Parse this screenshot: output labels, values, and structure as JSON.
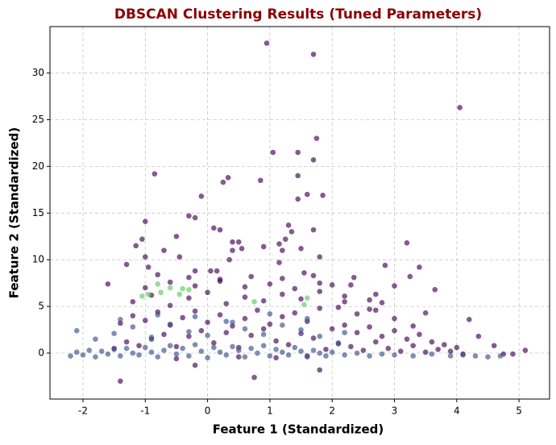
{
  "chart_data": {
    "type": "scatter",
    "title": "DBSCAN Clustering Results (Tuned Parameters)",
    "title_color": "#8b0000",
    "x_label": "Feature 1 (Standardized)",
    "y_label": "Feature 2 (Standardized)",
    "xlim": [
      -2.53,
      5.49
    ],
    "ylim": [
      -4.92,
      34.97
    ],
    "xticks": [
      -2,
      -1,
      0,
      1,
      2,
      3,
      4,
      5
    ],
    "yticks": [
      0,
      5,
      10,
      15,
      20,
      25,
      30
    ],
    "grid": true,
    "series": [
      {
        "color": "#440154",
        "x": [
          0.95,
          1.7,
          4.05,
          1.05,
          1.45,
          1.75,
          1.7,
          -0.85,
          0.25,
          0.33,
          0.85,
          1.45,
          -0.1,
          1.45,
          1.6,
          1.85,
          -1,
          -0.3,
          -0.2,
          0.1,
          0.2,
          1.3,
          1.35,
          1.7,
          -1.05,
          -0.5,
          0.4,
          0.5,
          1.15,
          1.25,
          -1.15,
          -0.7,
          0.4,
          0.55,
          0.9,
          1.2,
          1.5,
          1.8,
          3.2,
          -1,
          -0.45,
          0.35,
          -1.3,
          -0.95,
          1.15,
          2.85,
          3.4,
          -0.2,
          0.05,
          0.15,
          1.55,
          2.35,
          3.25,
          -1.6,
          2.0,
          2.3,
          2.7,
          3.0,
          3.65,
          2.6,
          2.8,
          3.5,
          4.2,
          4.35,
          4.6,
          5.1,
          4.9,
          4.75,
          -1.4,
          0.75,
          1.8,
          -0.2,
          -1.5,
          -1.3,
          -1.1,
          -0.9,
          -0.7,
          -0.5,
          -0.3,
          -0.1,
          0.1,
          0.3,
          0.5,
          0.7,
          0.9,
          1.1,
          1.3,
          1.5,
          1.7,
          1.9,
          2.1,
          2.3,
          2.5,
          2.7,
          2.9,
          3.1,
          3.3,
          3.5,
          3.7,
          3.9,
          4.1,
          -1.4,
          -1.2,
          -1.0,
          -0.8,
          -0.6,
          -0.4,
          -0.2,
          0.0,
          0.2,
          0.4,
          0.6,
          0.8,
          1.0,
          1.2,
          1.4,
          1.6,
          1.8,
          2.0,
          2.2,
          2.4,
          2.6,
          2.8,
          3.0,
          3.2,
          3.4,
          3.6,
          3.8,
          4.0,
          -1.2,
          -0.9,
          -0.6,
          -0.3,
          0.0,
          0.3,
          0.6,
          0.9,
          1.2,
          1.5,
          1.8,
          2.1,
          2.4,
          2.7,
          3.0,
          3.3,
          -1.0,
          -0.6,
          -0.2,
          0.2,
          0.6,
          1.0,
          1.4,
          1.8,
          2.2,
          2.6,
          -0.8,
          -0.3,
          0.2,
          0.7,
          1.2,
          1.7,
          2.2,
          -0.5,
          0.5,
          1.1,
          1.6
        ],
        "y": [
          33.2,
          32,
          26.3,
          21.5,
          21.5,
          23,
          20.7,
          19.2,
          18.3,
          18.8,
          18.5,
          19,
          16.8,
          16.5,
          17,
          16.9,
          14.1,
          14.7,
          14.5,
          13.4,
          13.2,
          13.7,
          13,
          13.2,
          12.2,
          12.5,
          11.9,
          11.9,
          11.7,
          12.2,
          11.5,
          11,
          11,
          11.2,
          11.4,
          11,
          11.2,
          10.3,
          11.8,
          10.3,
          10.3,
          10,
          9.5,
          9.2,
          9.7,
          9.4,
          9.2,
          8.8,
          8.8,
          8.8,
          8.6,
          8.1,
          8.2,
          7.4,
          7.3,
          7.3,
          6.3,
          7.2,
          6.8,
          5.7,
          5.4,
          4.3,
          3.6,
          1.8,
          0.8,
          0.3,
          -0.1,
          -0.1,
          -3,
          -2.6,
          -1.8,
          -1.3,
          0.5,
          1.2,
          0.8,
          1.5,
          2.0,
          0.7,
          1.8,
          2.4,
          1.1,
          2.2,
          0.6,
          1.9,
          2.6,
          1.3,
          0.9,
          2.1,
          1.6,
          0.4,
          1.0,
          0.7,
          0.3,
          1.2,
          0.5,
          0.2,
          0.8,
          0.1,
          0.4,
          0.2,
          -0.1,
          3.2,
          4.0,
          3.5,
          4.4,
          3.0,
          3.8,
          4.5,
          3.3,
          4.1,
          2.9,
          3.7,
          4.6,
          3.1,
          3.9,
          4.3,
          3.4,
          4.8,
          2.6,
          3.0,
          2.2,
          2.8,
          1.8,
          2.4,
          1.5,
          2.0,
          1.2,
          0.9,
          0.6,
          5.5,
          6.2,
          5.1,
          5.9,
          6.5,
          5.3,
          6.0,
          5.6,
          6.3,
          5.8,
          6.6,
          4.9,
          4.2,
          4.6,
          3.7,
          2.9,
          7.0,
          7.6,
          7.2,
          7.7,
          7.1,
          7.4,
          6.9,
          7.5,
          5.5,
          4.7,
          8.4,
          8.1,
          7.9,
          8.2,
          8.0,
          8.3,
          6.1,
          -0.6,
          -0.4,
          -0.5,
          -0.3
        ]
      },
      {
        "color": "#3b528b",
        "x": [
          -2.2,
          -2.1,
          -2.0,
          -1.9,
          -1.8,
          -1.7,
          -1.6,
          -1.5,
          -1.4,
          -1.3,
          -1.2,
          -1.1,
          -1.0,
          -0.9,
          -0.8,
          -0.7,
          -0.6,
          -0.5,
          -0.4,
          -0.3,
          -0.2,
          -0.1,
          0.0,
          0.1,
          0.2,
          0.3,
          0.4,
          0.5,
          0.6,
          0.7,
          0.8,
          0.9,
          1.0,
          1.1,
          1.2,
          1.3,
          1.4,
          1.5,
          1.6,
          1.7,
          1.8,
          1.9,
          2.0,
          2.2,
          2.4,
          2.6,
          2.8,
          3.0,
          3.3,
          3.6,
          3.9,
          4.1,
          4.3,
          4.5,
          4.7,
          -2.1,
          -1.8,
          -1.5,
          -1.2,
          -0.9,
          -0.6,
          -0.3,
          0.0,
          0.3,
          0.6,
          0.9,
          1.2,
          1.5,
          1.8,
          2.1,
          -1.4,
          -0.8,
          -0.2,
          0.4,
          1.0,
          1.6,
          2.2
        ],
        "y": [
          -0.3,
          0.1,
          -0.2,
          0.3,
          -0.4,
          0.2,
          -0.1,
          0.4,
          -0.3,
          0.5,
          0.0,
          -0.2,
          0.6,
          0.1,
          -0.4,
          0.3,
          0.8,
          -0.1,
          0.5,
          -0.3,
          0.9,
          0.2,
          -0.5,
          0.6,
          0.1,
          -0.2,
          0.7,
          0.3,
          -0.4,
          0.5,
          0.0,
          0.8,
          -0.3,
          0.4,
          0.1,
          -0.2,
          0.6,
          0.2,
          -0.4,
          0.3,
          0.0,
          -0.3,
          0.1,
          -0.2,
          0.0,
          -0.3,
          -0.1,
          -0.2,
          -0.3,
          -0.1,
          -0.3,
          -0.2,
          -0.3,
          -0.4,
          -0.3,
          2.4,
          1.5,
          2.1,
          2.8,
          1.7,
          3.1,
          2.3,
          1.9,
          3.4,
          2.6,
          2.0,
          3.0,
          2.5,
          1.8,
          1.1,
          3.6,
          4.1,
          3.9,
          3.3,
          4.2,
          3.7,
          2.2
        ]
      },
      {
        "color": "#5ec962",
        "x": [
          -1.05,
          -0.95,
          -0.8,
          -0.75,
          -0.6,
          -0.4,
          -0.3,
          -0.45,
          1.55,
          1.6,
          0.75
        ],
        "y": [
          6.1,
          6.3,
          7.4,
          6.5,
          7.0,
          6.9,
          6.8,
          6.3,
          5.2,
          5.9,
          5.5
        ]
      }
    ]
  }
}
